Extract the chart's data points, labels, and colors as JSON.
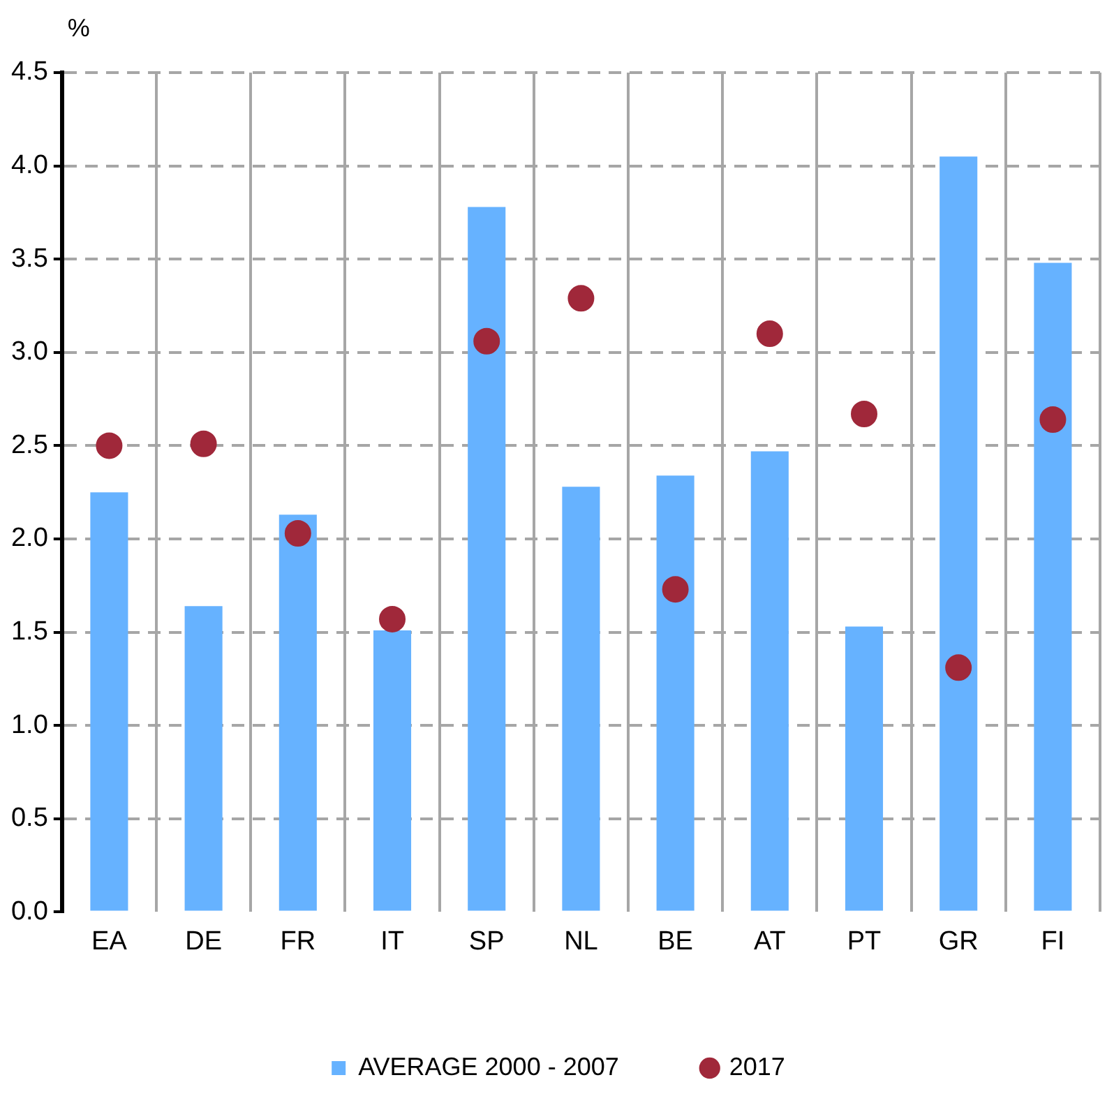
{
  "chart_data": {
    "type": "bar",
    "ylabel": "%",
    "categories": [
      "EA",
      "DE",
      "FR",
      "IT",
      "SP",
      "NL",
      "BE",
      "AT",
      "PT",
      "GR",
      "FI"
    ],
    "series": [
      {
        "name": "AVERAGE 2000 - 2007",
        "color": "#66b2ff",
        "values": [
          2.25,
          1.64,
          2.13,
          1.51,
          3.78,
          2.28,
          2.34,
          2.47,
          1.53,
          4.05,
          3.48
        ]
      },
      {
        "name": "2017",
        "type": "scatter",
        "color": "#a0283a",
        "marker": "circle",
        "x": [
          "EA",
          "DE",
          "FR",
          "IT",
          "SP",
          "NL",
          "BE",
          "AT",
          "PT",
          "GR",
          "FI"
        ],
        "values": [
          2.5,
          2.51,
          2.03,
          1.57,
          3.06,
          3.29,
          1.73,
          3.1,
          2.67,
          1.31,
          2.64
        ]
      }
    ],
    "ylim": [
      0,
      4.5
    ],
    "yticks": [
      {
        "value": 0,
        "label": "0.0"
      },
      {
        "value": 0.5,
        "label": "0.5"
      },
      {
        "value": 1,
        "label": "1.0"
      },
      {
        "value": 1.5,
        "label": "1.5"
      },
      {
        "value": 2,
        "label": "2.0"
      },
      {
        "value": 2.5,
        "label": "2.5"
      },
      {
        "value": 3,
        "label": "3.0"
      },
      {
        "value": 3.5,
        "label": "3.5"
      },
      {
        "value": 4,
        "label": "4.0"
      },
      {
        "value": 4.5,
        "label": "4.5"
      }
    ],
    "grid": true,
    "legend": "bottom"
  }
}
